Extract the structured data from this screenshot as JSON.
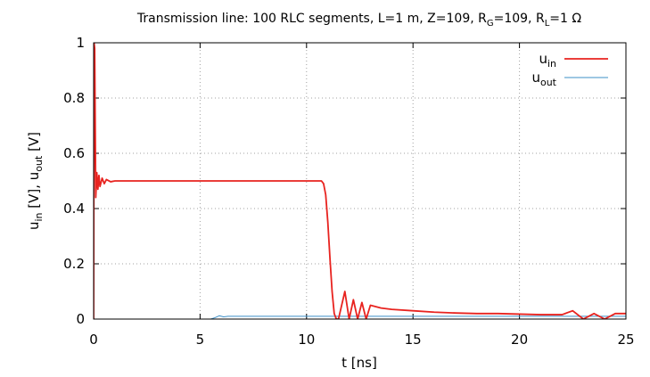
{
  "chart_data": {
    "type": "line",
    "title": {
      "main": "Transmission line: 100 RLC segments, L=1 m, Z=109, R",
      "rg_sub": "G",
      "rg_rest": "=109, R",
      "rl_sub": "L",
      "rl_rest": "=1 Ω"
    },
    "xlabel": "t [ns]",
    "ylabel": {
      "a": "u",
      "a_sub": "in",
      "b": " [V], u",
      "b_sub": "out",
      "c": " [V]"
    },
    "xlim": [
      0,
      25
    ],
    "ylim": [
      0,
      1
    ],
    "x_ticks": [
      "0",
      "5",
      "10",
      "15",
      "20",
      "25"
    ],
    "y_ticks": [
      "0",
      "0.2",
      "0.4",
      "0.6",
      "0.8",
      "1"
    ],
    "grid": true,
    "legend_position": "top-right",
    "series": [
      {
        "name": "u",
        "name_sub": "in",
        "color": "#e8231f",
        "x": [
          0.0,
          0.02,
          0.05,
          0.1,
          0.15,
          0.2,
          0.25,
          0.3,
          0.4,
          0.5,
          0.6,
          0.8,
          1.0,
          1.5,
          2,
          3,
          4,
          5,
          6,
          7,
          8,
          9,
          10,
          10.5,
          10.7,
          10.8,
          10.9,
          11.0,
          11.1,
          11.2,
          11.3,
          11.4,
          11.5,
          11.8,
          12.0,
          12.2,
          12.4,
          12.6,
          12.8,
          13.0,
          13.5,
          14,
          15,
          16,
          17,
          18,
          19,
          20,
          21,
          22,
          22.5,
          23,
          23.5,
          24,
          24.5,
          25
        ],
        "y": [
          0.0,
          1.0,
          0.98,
          0.44,
          0.53,
          0.47,
          0.52,
          0.48,
          0.51,
          0.49,
          0.505,
          0.497,
          0.5,
          0.5,
          0.5,
          0.5,
          0.5,
          0.5,
          0.5,
          0.5,
          0.5,
          0.5,
          0.5,
          0.5,
          0.5,
          0.49,
          0.45,
          0.35,
          0.22,
          0.1,
          0.02,
          0.0,
          0.0,
          0.1,
          0.0,
          0.07,
          0.0,
          0.06,
          0.0,
          0.05,
          0.04,
          0.035,
          0.03,
          0.025,
          0.022,
          0.02,
          0.02,
          0.018,
          0.016,
          0.016,
          0.03,
          0.0,
          0.02,
          0.0,
          0.02,
          0.02
        ]
      },
      {
        "name": "u",
        "name_sub": "out",
        "color": "#3d8fc7",
        "x": [
          0,
          5,
          5.5,
          5.7,
          5.9,
          6.1,
          6.3,
          7,
          10,
          15,
          20,
          25
        ],
        "y": [
          0.0,
          0.0,
          0.0,
          0.005,
          0.012,
          0.008,
          0.01,
          0.01,
          0.01,
          0.01,
          0.01,
          0.01
        ]
      }
    ]
  }
}
